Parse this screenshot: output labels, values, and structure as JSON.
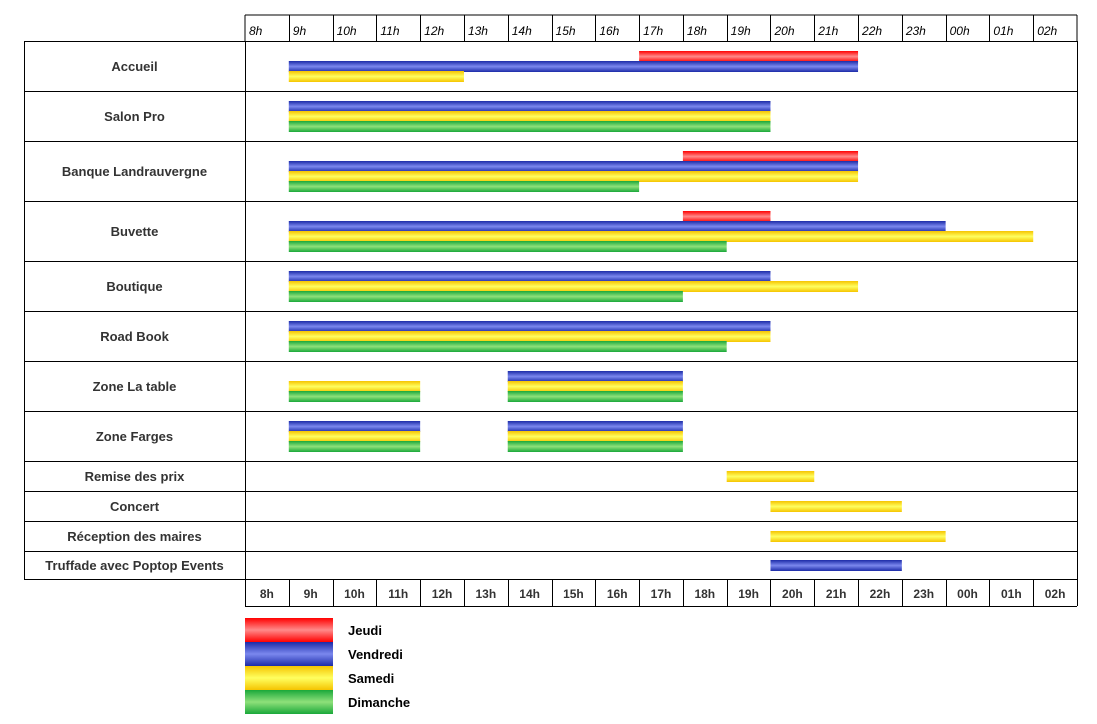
{
  "chart_data": {
    "type": "gantt",
    "time_ticks": [
      "8h",
      "9h",
      "10h",
      "11h",
      "12h",
      "13h",
      "14h",
      "15h",
      "16h",
      "17h",
      "18h",
      "19h",
      "20h",
      "21h",
      "22h",
      "23h",
      "00h",
      "01h",
      "02h"
    ],
    "series": [
      {
        "name": "Jeudi",
        "key": "jeudi",
        "colors": [
          "#ff0000",
          "#ff8a8a"
        ]
      },
      {
        "name": "Vendredi",
        "key": "vendredi",
        "colors": [
          "#1c2ba8",
          "#7b88ee"
        ]
      },
      {
        "name": "Samedi",
        "key": "samedi",
        "colors": [
          "#f5c400",
          "#ffff60"
        ]
      },
      {
        "name": "Dimanche",
        "key": "dimanche",
        "colors": [
          "#1aa83a",
          "#8ee07a"
        ]
      }
    ],
    "rows": [
      {
        "label": "Accueil",
        "bars": [
          {
            "series": "jeudi",
            "start": 17,
            "end": 22
          },
          {
            "series": "vendredi",
            "start": 9,
            "end": 22
          },
          {
            "series": "samedi",
            "start": 9,
            "end": 13
          }
        ]
      },
      {
        "label": "Salon Pro",
        "bars": [
          {
            "series": "vendredi",
            "start": 9,
            "end": 20
          },
          {
            "series": "samedi",
            "start": 9,
            "end": 20
          },
          {
            "series": "dimanche",
            "start": 9,
            "end": 20
          }
        ]
      },
      {
        "label": "Banque Landrauvergne",
        "bars": [
          {
            "series": "jeudi",
            "start": 18,
            "end": 22
          },
          {
            "series": "vendredi",
            "start": 9,
            "end": 22
          },
          {
            "series": "samedi",
            "start": 9,
            "end": 22
          },
          {
            "series": "dimanche",
            "start": 9,
            "end": 17
          }
        ]
      },
      {
        "label": "Buvette",
        "bars": [
          {
            "series": "jeudi",
            "start": 18,
            "end": 20
          },
          {
            "series": "vendredi",
            "start": 9,
            "end": 24
          },
          {
            "series": "samedi",
            "start": 9,
            "end": 26
          },
          {
            "series": "dimanche",
            "start": 9,
            "end": 19
          }
        ]
      },
      {
        "label": "Boutique",
        "bars": [
          {
            "series": "vendredi",
            "start": 9,
            "end": 20
          },
          {
            "series": "samedi",
            "start": 9,
            "end": 22
          },
          {
            "series": "dimanche",
            "start": 9,
            "end": 18
          }
        ]
      },
      {
        "label": "Road Book",
        "bars": [
          {
            "series": "vendredi",
            "start": 9,
            "end": 20
          },
          {
            "series": "samedi",
            "start": 9,
            "end": 20
          },
          {
            "series": "dimanche",
            "start": 9,
            "end": 19
          }
        ]
      },
      {
        "label": "Zone La table",
        "bars": [
          {
            "series": "samedi",
            "start": 9,
            "end": 12
          },
          {
            "series": "dimanche",
            "start": 9,
            "end": 12
          },
          {
            "series": "vendredi",
            "start": 14,
            "end": 18
          },
          {
            "series": "samedi",
            "start": 14,
            "end": 18
          },
          {
            "series": "dimanche",
            "start": 14,
            "end": 18
          }
        ]
      },
      {
        "label": "Zone Farges",
        "bars": [
          {
            "series": "vendredi",
            "start": 9,
            "end": 12
          },
          {
            "series": "samedi",
            "start": 9,
            "end": 12
          },
          {
            "series": "dimanche",
            "start": 9,
            "end": 12
          },
          {
            "series": "vendredi",
            "start": 14,
            "end": 18
          },
          {
            "series": "samedi",
            "start": 14,
            "end": 18
          },
          {
            "series": "dimanche",
            "start": 14,
            "end": 18
          }
        ]
      },
      {
        "label": "Remise des prix",
        "bars": [
          {
            "series": "samedi",
            "start": 19,
            "end": 21
          }
        ]
      },
      {
        "label": "Concert",
        "bars": [
          {
            "series": "samedi",
            "start": 20,
            "end": 23
          }
        ]
      },
      {
        "label": "Réception des maires",
        "bars": [
          {
            "series": "samedi",
            "start": 20,
            "end": 24
          }
        ]
      },
      {
        "label": "Truffade avec Poptop Events",
        "bars": [
          {
            "series": "vendredi",
            "start": 20,
            "end": 23
          }
        ]
      }
    ],
    "legend_position": "bottom-left",
    "grid": false
  }
}
